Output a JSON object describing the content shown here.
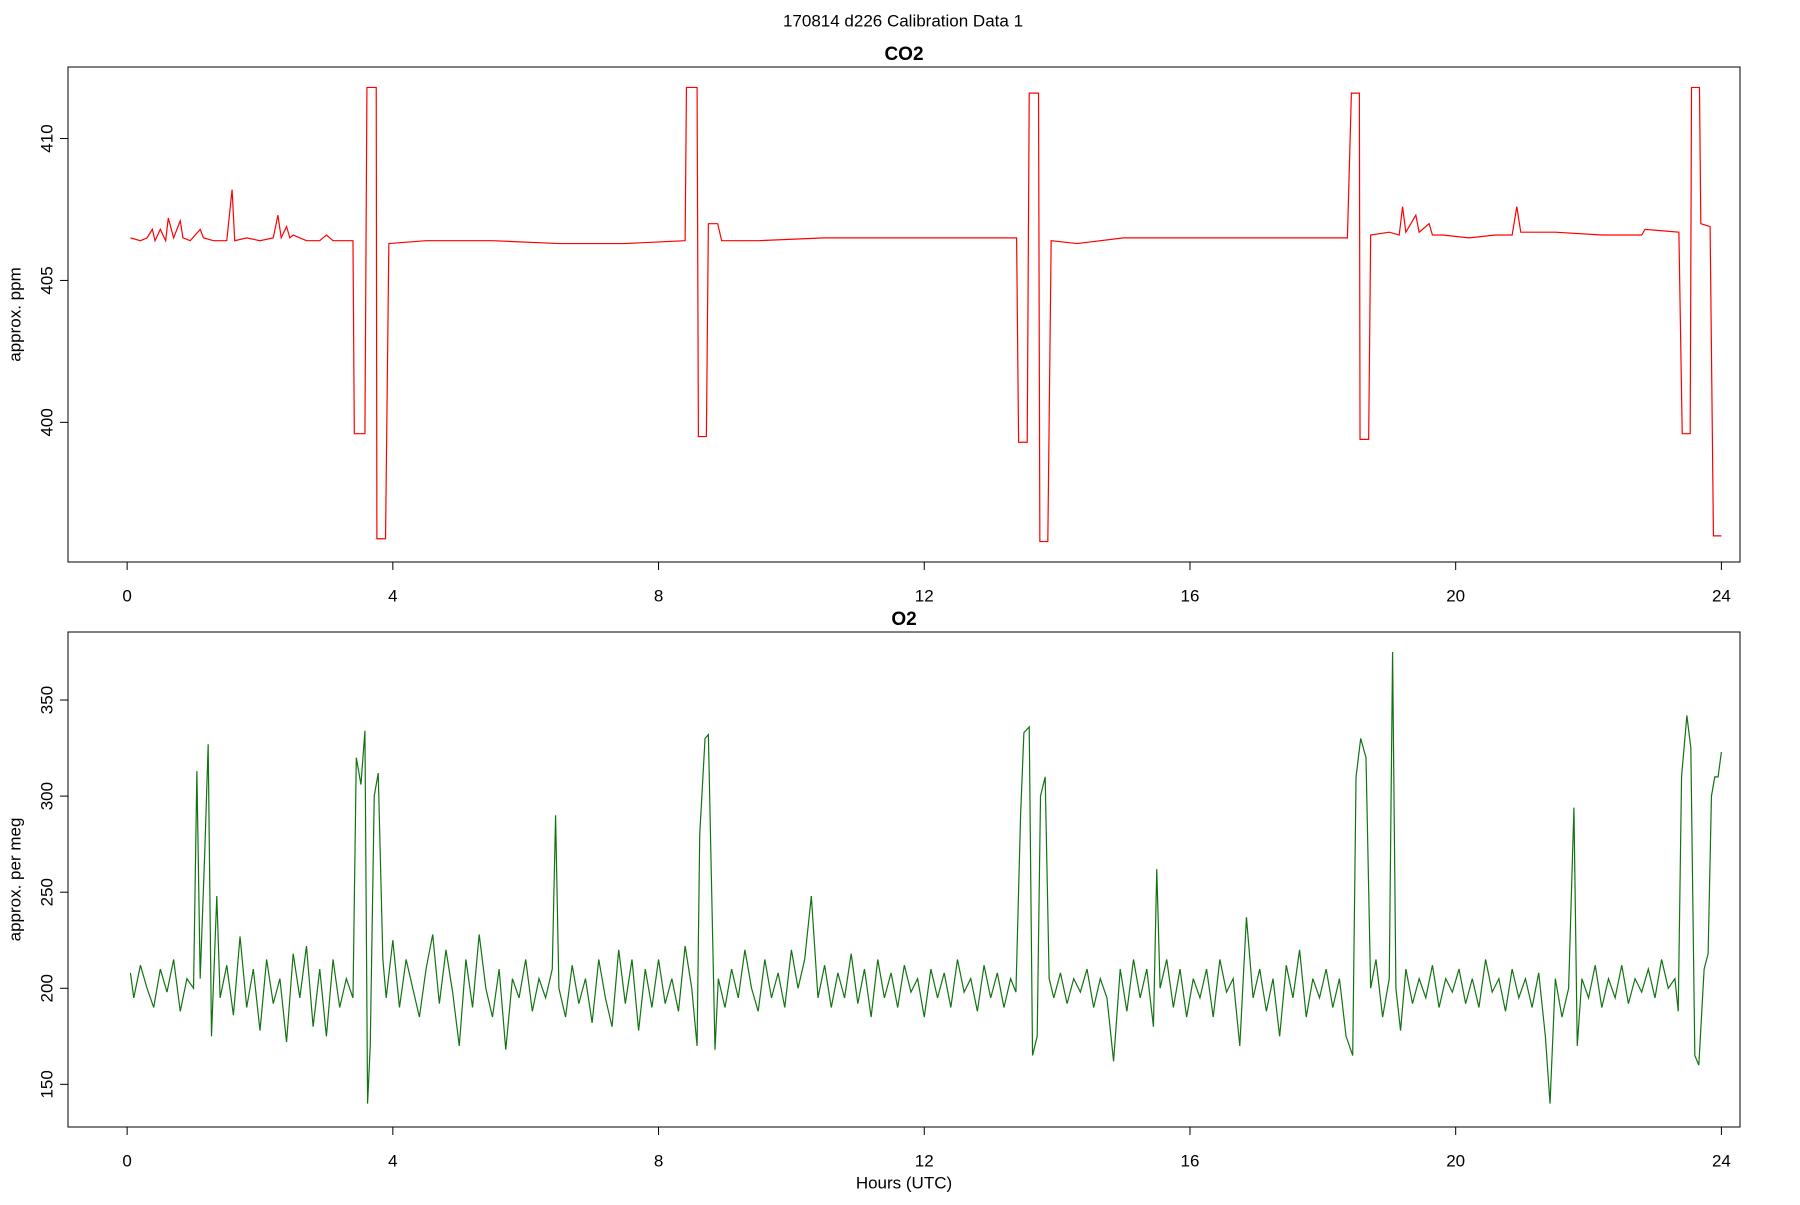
{
  "title": "170814   d226   Calibration Data 1",
  "chart_data": [
    {
      "type": "line",
      "title": "CO2",
      "ylabel": "approx. ppm",
      "xlim": [
        -0.89,
        24.28
      ],
      "xticks": [
        0,
        4,
        8,
        12,
        16,
        20,
        24
      ],
      "ylim": [
        395.08,
        412.52
      ],
      "yticks": [
        400,
        405,
        410
      ],
      "x": [
        0.05,
        0.2,
        0.3,
        0.38,
        0.42,
        0.5,
        0.58,
        0.62,
        0.7,
        0.8,
        0.84,
        0.95,
        1.1,
        1.15,
        1.3,
        1.5,
        1.58,
        1.62,
        1.8,
        2.0,
        2.2,
        2.27,
        2.32,
        2.4,
        2.45,
        2.5,
        2.7,
        2.9,
        3.0,
        3.1,
        3.4,
        3.42,
        3.58,
        3.61,
        3.75,
        3.76,
        3.89,
        3.94,
        4.5,
        5.5,
        6.5,
        7.5,
        8.4,
        8.42,
        8.58,
        8.6,
        8.72,
        8.75,
        8.89,
        8.95,
        9.5,
        10.5,
        11.5,
        12.5,
        13.39,
        13.42,
        13.55,
        13.58,
        13.72,
        13.74,
        13.86,
        13.91,
        14.3,
        15,
        16,
        17,
        18,
        18.37,
        18.43,
        18.55,
        18.56,
        18.69,
        18.72,
        19.0,
        19.15,
        19.2,
        19.25,
        19.4,
        19.45,
        19.6,
        19.65,
        19.8,
        20.2,
        20.6,
        20.85,
        20.92,
        20.98,
        21.5,
        22.2,
        22.8,
        22.85,
        23.36,
        23.41,
        23.53,
        23.55,
        23.67,
        23.69,
        23.83,
        23.88,
        24.0
      ],
      "series": [
        {
          "color": "#ff0000",
          "values": [
            406.5,
            406.4,
            406.5,
            406.8,
            406.4,
            406.8,
            406.4,
            407.2,
            406.5,
            407.1,
            406.5,
            406.4,
            406.8,
            406.5,
            406.4,
            406.4,
            408.2,
            406.4,
            406.5,
            406.4,
            406.5,
            407.3,
            406.5,
            406.9,
            406.5,
            406.6,
            406.4,
            406.4,
            406.6,
            406.4,
            406.4,
            399.6,
            399.6,
            411.8,
            411.8,
            395.9,
            395.9,
            406.3,
            406.4,
            406.4,
            406.3,
            406.3,
            406.4,
            411.8,
            411.8,
            399.5,
            399.5,
            407.0,
            407.0,
            406.4,
            406.4,
            406.5,
            406.5,
            406.5,
            406.5,
            399.3,
            399.3,
            411.6,
            411.6,
            395.8,
            395.8,
            406.4,
            406.3,
            406.5,
            406.5,
            406.5,
            406.5,
            406.5,
            411.6,
            411.6,
            399.4,
            399.4,
            406.6,
            406.7,
            406.6,
            407.6,
            406.7,
            407.3,
            406.7,
            407.0,
            406.6,
            406.6,
            406.5,
            406.6,
            406.6,
            407.6,
            406.7,
            406.7,
            406.6,
            406.6,
            406.8,
            406.7,
            399.6,
            399.6,
            411.8,
            411.8,
            407.0,
            406.9,
            396.0,
            396.0
          ]
        }
      ]
    },
    {
      "type": "line",
      "title": "O2",
      "ylabel": "approx. per meg",
      "xlabel": "Hours (UTC)",
      "xlim": [
        -0.89,
        24.28
      ],
      "xticks": [
        0,
        4,
        8,
        12,
        16,
        20,
        24
      ],
      "ylim": [
        127.8,
        385.4
      ],
      "yticks": [
        150,
        200,
        250,
        300,
        350
      ],
      "x": [
        0.05,
        0.1,
        0.2,
        0.3,
        0.4,
        0.5,
        0.6,
        0.7,
        0.8,
        0.9,
        1.0,
        1.05,
        1.1,
        1.17,
        1.22,
        1.27,
        1.35,
        1.4,
        1.5,
        1.6,
        1.7,
        1.8,
        1.9,
        2.0,
        2.1,
        2.2,
        2.3,
        2.4,
        2.5,
        2.6,
        2.7,
        2.8,
        2.9,
        3.0,
        3.1,
        3.2,
        3.3,
        3.4,
        3.45,
        3.52,
        3.58,
        3.62,
        3.66,
        3.72,
        3.78,
        3.85,
        3.9,
        4.0,
        4.1,
        4.2,
        4.3,
        4.4,
        4.5,
        4.6,
        4.7,
        4.8,
        4.9,
        5.0,
        5.1,
        5.2,
        5.3,
        5.4,
        5.5,
        5.6,
        5.7,
        5.8,
        5.9,
        6.0,
        6.1,
        6.2,
        6.3,
        6.4,
        6.45,
        6.5,
        6.6,
        6.7,
        6.8,
        6.9,
        7.0,
        7.1,
        7.2,
        7.3,
        7.4,
        7.5,
        7.6,
        7.7,
        7.8,
        7.9,
        8.0,
        8.1,
        8.2,
        8.3,
        8.4,
        8.5,
        8.58,
        8.62,
        8.7,
        8.75,
        8.85,
        8.9,
        9.0,
        9.1,
        9.2,
        9.3,
        9.4,
        9.5,
        9.6,
        9.7,
        9.8,
        9.9,
        10.0,
        10.1,
        10.2,
        10.3,
        10.4,
        10.5,
        10.6,
        10.7,
        10.8,
        10.9,
        11.0,
        11.1,
        11.2,
        11.3,
        11.4,
        11.5,
        11.6,
        11.7,
        11.8,
        11.9,
        12.0,
        12.1,
        12.2,
        12.3,
        12.4,
        12.5,
        12.6,
        12.7,
        12.8,
        12.9,
        13.0,
        13.1,
        13.2,
        13.3,
        13.38,
        13.45,
        13.5,
        13.58,
        13.63,
        13.7,
        13.75,
        13.82,
        13.88,
        13.95,
        14.05,
        14.15,
        14.25,
        14.35,
        14.45,
        14.55,
        14.65,
        14.75,
        14.85,
        14.95,
        15.05,
        15.15,
        15.25,
        15.35,
        15.45,
        15.5,
        15.55,
        15.65,
        15.75,
        15.85,
        15.95,
        16.05,
        16.15,
        16.25,
        16.35,
        16.45,
        16.55,
        16.65,
        16.75,
        16.85,
        16.95,
        17.05,
        17.15,
        17.25,
        17.35,
        17.45,
        17.55,
        17.65,
        17.75,
        17.85,
        17.95,
        18.05,
        18.15,
        18.25,
        18.35,
        18.45,
        18.5,
        18.57,
        18.65,
        18.72,
        18.8,
        18.9,
        19.0,
        19.05,
        19.1,
        19.17,
        19.25,
        19.35,
        19.45,
        19.55,
        19.65,
        19.75,
        19.85,
        19.95,
        20.05,
        20.15,
        20.25,
        20.35,
        20.45,
        20.55,
        20.65,
        20.75,
        20.85,
        20.95,
        21.05,
        21.15,
        21.25,
        21.35,
        21.42,
        21.5,
        21.6,
        21.7,
        21.78,
        21.83,
        21.9,
        22.0,
        22.1,
        22.2,
        22.3,
        22.4,
        22.5,
        22.6,
        22.7,
        22.8,
        22.9,
        23.0,
        23.1,
        23.2,
        23.3,
        23.35,
        23.4,
        23.48,
        23.54,
        23.6,
        23.66,
        23.74,
        23.8,
        23.85,
        23.9,
        23.95,
        24.0
      ],
      "series": [
        {
          "color": "#127312",
          "values": [
            208,
            195,
            212,
            200,
            190,
            210,
            198,
            215,
            188,
            205,
            200,
            313,
            205,
            272,
            327,
            175,
            248,
            195,
            212,
            186,
            227,
            190,
            210,
            178,
            215,
            192,
            205,
            172,
            218,
            195,
            222,
            180,
            210,
            175,
            215,
            190,
            205,
            195,
            320,
            306,
            334,
            140,
            170,
            300,
            312,
            215,
            195,
            225,
            190,
            215,
            200,
            185,
            210,
            228,
            192,
            220,
            198,
            170,
            215,
            190,
            228,
            200,
            185,
            210,
            168,
            205,
            195,
            215,
            188,
            205,
            195,
            210,
            290,
            200,
            185,
            212,
            192,
            205,
            182,
            215,
            195,
            180,
            220,
            192,
            215,
            178,
            210,
            190,
            215,
            192,
            205,
            188,
            222,
            200,
            170,
            280,
            330,
            332,
            168,
            205,
            190,
            210,
            195,
            220,
            200,
            188,
            215,
            195,
            208,
            190,
            220,
            200,
            215,
            248,
            195,
            212,
            190,
            208,
            195,
            218,
            192,
            210,
            185,
            215,
            195,
            208,
            190,
            212,
            198,
            205,
            185,
            210,
            195,
            208,
            190,
            215,
            198,
            205,
            188,
            212,
            195,
            208,
            190,
            205,
            198,
            290,
            333,
            336,
            165,
            175,
            300,
            310,
            205,
            195,
            208,
            192,
            205,
            198,
            210,
            190,
            205,
            195,
            162,
            210,
            188,
            215,
            195,
            210,
            180,
            262,
            200,
            215,
            190,
            210,
            185,
            205,
            195,
            210,
            185,
            215,
            198,
            205,
            170,
            237,
            195,
            210,
            188,
            205,
            175,
            212,
            195,
            220,
            185,
            205,
            195,
            210,
            190,
            205,
            175,
            165,
            310,
            330,
            320,
            200,
            215,
            185,
            205,
            375,
            200,
            178,
            210,
            192,
            205,
            195,
            212,
            190,
            205,
            198,
            210,
            192,
            205,
            190,
            215,
            198,
            205,
            188,
            210,
            195,
            205,
            190,
            208,
            175,
            140,
            205,
            185,
            200,
            294,
            170,
            205,
            195,
            212,
            190,
            205,
            195,
            212,
            192,
            205,
            198,
            210,
            195,
            215,
            200,
            205,
            188,
            310,
            342,
            325,
            165,
            160,
            210,
            218,
            300,
            310,
            310,
            323
          ]
        }
      ]
    }
  ]
}
